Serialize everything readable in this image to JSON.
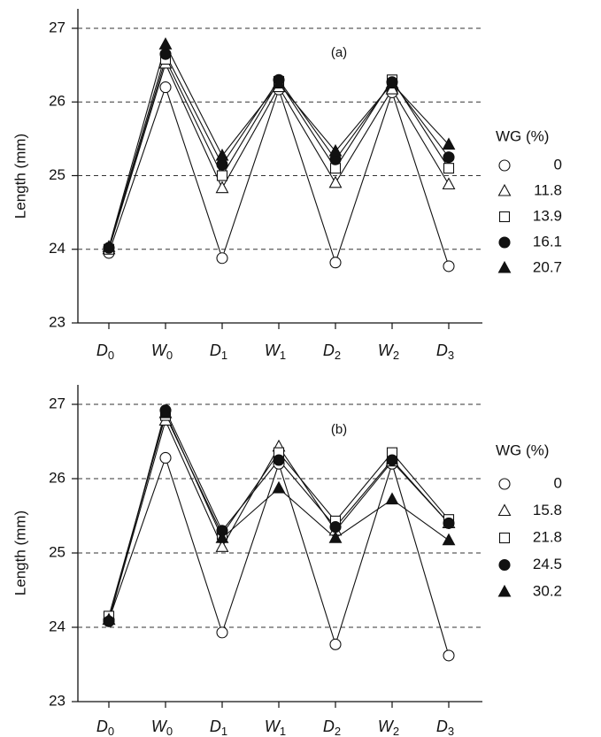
{
  "chart_data": [
    {
      "type": "line",
      "annotation": "(a)",
      "y_label": "Length (mm)",
      "legend_title": "WG (%)",
      "legend": "right",
      "grid": true,
      "categories": [
        [
          "D",
          "0"
        ],
        [
          "W",
          "0"
        ],
        [
          "D",
          "1"
        ],
        [
          "W",
          "1"
        ],
        [
          "D",
          "2"
        ],
        [
          "W",
          "2"
        ],
        [
          "D",
          "3"
        ]
      ],
      "ylim": [
        23,
        27
      ],
      "yticks": [
        23,
        24,
        25,
        26,
        27
      ],
      "series": [
        {
          "name": "0",
          "marker": "circle-open",
          "color": "#111",
          "values": [
            23.95,
            26.2,
            23.88,
            26.17,
            23.82,
            26.13,
            23.77
          ]
        },
        {
          "name": "11.8",
          "marker": "triangle-open",
          "color": "#111",
          "values": [
            24.0,
            26.52,
            24.83,
            26.2,
            24.9,
            26.17,
            24.88
          ]
        },
        {
          "name": "13.9",
          "marker": "square-open",
          "color": "#111",
          "values": [
            24.0,
            26.58,
            25.0,
            26.28,
            25.1,
            26.3,
            25.1
          ]
        },
        {
          "name": "16.1",
          "marker": "circle-filled",
          "color": "#111",
          "values": [
            24.02,
            26.65,
            25.15,
            26.3,
            25.22,
            26.27,
            25.25
          ]
        },
        {
          "name": "20.7",
          "marker": "triangle-filled",
          "color": "#111",
          "values": [
            24.03,
            26.78,
            25.27,
            26.25,
            25.33,
            26.25,
            25.42
          ]
        }
      ]
    },
    {
      "type": "line",
      "annotation": "(b)",
      "y_label": "Length (mm)",
      "legend_title": "WG (%)",
      "legend": "right",
      "grid": true,
      "categories": [
        [
          "D",
          "0"
        ],
        [
          "W",
          "0"
        ],
        [
          "D",
          "1"
        ],
        [
          "W",
          "1"
        ],
        [
          "D",
          "2"
        ],
        [
          "W",
          "2"
        ],
        [
          "D",
          "3"
        ]
      ],
      "ylim": [
        23,
        27
      ],
      "yticks": [
        23,
        24,
        25,
        26,
        27
      ],
      "series": [
        {
          "name": "0",
          "marker": "circle-open",
          "color": "#111",
          "values": [
            24.1,
            26.28,
            23.93,
            26.2,
            23.77,
            26.2,
            23.62
          ]
        },
        {
          "name": "15.8",
          "marker": "triangle-open",
          "color": "#111",
          "values": [
            24.1,
            26.78,
            25.08,
            26.43,
            25.3,
            26.23,
            25.4
          ]
        },
        {
          "name": "21.8",
          "marker": "square-open",
          "color": "#111",
          "values": [
            24.15,
            26.85,
            25.25,
            26.35,
            25.43,
            26.35,
            25.45
          ]
        },
        {
          "name": "24.5",
          "marker": "circle-filled",
          "color": "#111",
          "values": [
            24.08,
            26.92,
            25.3,
            26.25,
            25.35,
            26.25,
            25.4
          ]
        },
        {
          "name": "30.2",
          "marker": "triangle-filled",
          "color": "#111",
          "values": [
            24.1,
            26.88,
            25.2,
            25.87,
            25.2,
            25.72,
            25.17
          ]
        }
      ]
    }
  ]
}
